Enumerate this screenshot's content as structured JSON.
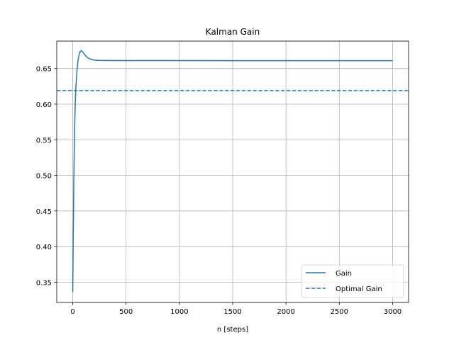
{
  "chart_data": {
    "type": "line",
    "title": "Kalman Gain",
    "xlabel": "n [steps]",
    "ylabel": "",
    "xlim": [
      -150,
      3150
    ],
    "ylim": [
      0.3215,
      0.6885
    ],
    "xticks": [
      0,
      500,
      1000,
      1500,
      2000,
      2500,
      3000
    ],
    "xtick_labels": [
      "0",
      "500",
      "1000",
      "1500",
      "2000",
      "2500",
      "3000"
    ],
    "yticks": [
      0.35,
      0.4,
      0.45,
      0.5,
      0.55,
      0.6,
      0.65
    ],
    "ytick_labels": [
      "0.35",
      "0.40",
      "0.45",
      "0.50",
      "0.55",
      "0.60",
      "0.65"
    ],
    "grid": true,
    "legend_position": "lower-right",
    "series": [
      {
        "name": "Gain",
        "style": "solid",
        "color": "#1f77b4",
        "x": [
          0,
          5,
          10,
          15,
          20,
          25,
          30,
          40,
          50,
          60,
          70,
          80,
          90,
          100,
          120,
          140,
          160,
          180,
          200,
          250,
          300,
          400,
          500,
          750,
          1000,
          1500,
          2000,
          2500,
          3000
        ],
        "y": [
          0.336,
          0.42,
          0.49,
          0.545,
          0.582,
          0.607,
          0.625,
          0.648,
          0.662,
          0.67,
          0.674,
          0.675,
          0.674,
          0.672,
          0.668,
          0.665,
          0.6635,
          0.6625,
          0.6618,
          0.6614,
          0.6613,
          0.6612,
          0.6612,
          0.6611,
          0.6611,
          0.661,
          0.661,
          0.661,
          0.661
        ]
      },
      {
        "name": "Optimal Gain",
        "style": "dashed",
        "color": "#1f77b4",
        "x": [
          -150,
          3150
        ],
        "y": [
          0.619,
          0.619
        ]
      }
    ]
  }
}
